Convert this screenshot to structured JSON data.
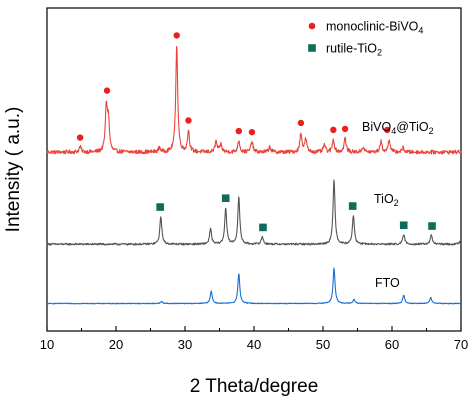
{
  "chart_data": {
    "type": "line",
    "title": "",
    "xlabel": "2 Theta/degree",
    "ylabel": "Intensity ( a.u.)",
    "xlim": [
      10,
      70
    ],
    "xticks": [
      10,
      20,
      30,
      40,
      50,
      60,
      70
    ],
    "yticks_labeled": false,
    "grid": false,
    "legend_position": "top-right",
    "legend": [
      {
        "marker": "circle",
        "color": "#e8211f",
        "label": "monoclinic-BiVO",
        "sub": "4"
      },
      {
        "marker": "square",
        "color": "#0f6b5a",
        "label": "rutile-TiO",
        "sub": "2"
      }
    ],
    "series": [
      {
        "name": "BiVO4@TiO2",
        "label_parts": [
          "BiVO",
          "4",
          "@TiO",
          "2"
        ],
        "color": "#e8443a",
        "baseline": 0.12,
        "noise": 0.018,
        "y_range": [
          0,
          1.35
        ],
        "peaks": [
          [
            14.8,
            0.05
          ],
          [
            18.6,
            0.42
          ],
          [
            18.9,
            0.28
          ],
          [
            26.3,
            0.04
          ],
          [
            28.8,
            1.0
          ],
          [
            30.5,
            0.2
          ],
          [
            34.5,
            0.1
          ],
          [
            35.2,
            0.07
          ],
          [
            37.8,
            0.11
          ],
          [
            39.7,
            0.1
          ],
          [
            42.3,
            0.05
          ],
          [
            46.8,
            0.18
          ],
          [
            47.5,
            0.12
          ],
          [
            50.2,
            0.07
          ],
          [
            51.5,
            0.12
          ],
          [
            53.2,
            0.13
          ],
          [
            55.8,
            0.05
          ],
          [
            58.4,
            0.1
          ],
          [
            59.6,
            0.12
          ],
          [
            61.6,
            0.04
          ]
        ],
        "markers": {
          "type": "circle",
          "x": [
            14.8,
            18.7,
            28.8,
            30.5,
            37.8,
            39.7,
            46.8,
            51.5,
            53.2,
            59.3
          ]
        }
      },
      {
        "name": "TiO2",
        "label_parts": [
          "TiO",
          "2"
        ],
        "color": "#555555",
        "baseline": 0.05,
        "noise": 0.012,
        "y_range": [
          0,
          1.0
        ],
        "peaks": [
          [
            26.5,
            0.37
          ],
          [
            33.7,
            0.2
          ],
          [
            35.9,
            0.48
          ],
          [
            37.8,
            0.62
          ],
          [
            41.2,
            0.1
          ],
          [
            51.6,
            0.85
          ],
          [
            54.4,
            0.38
          ],
          [
            61.7,
            0.13
          ],
          [
            65.7,
            0.12
          ],
          [
            69.8,
            0.03
          ]
        ],
        "markers": {
          "type": "square",
          "x": [
            26.4,
            35.9,
            41.3,
            54.3,
            61.7,
            65.8
          ]
        }
      },
      {
        "name": "FTO",
        "label_parts": [
          "FTO"
        ],
        "color": "#1a6fd6",
        "baseline": 0.03,
        "noise": 0.008,
        "y_range": [
          0,
          1.0
        ],
        "peaks": [
          [
            26.6,
            0.04
          ],
          [
            33.8,
            0.25
          ],
          [
            37.8,
            0.6
          ],
          [
            51.6,
            0.71
          ],
          [
            54.5,
            0.08
          ],
          [
            61.7,
            0.17
          ],
          [
            65.6,
            0.12
          ]
        ],
        "markers": null
      }
    ]
  }
}
